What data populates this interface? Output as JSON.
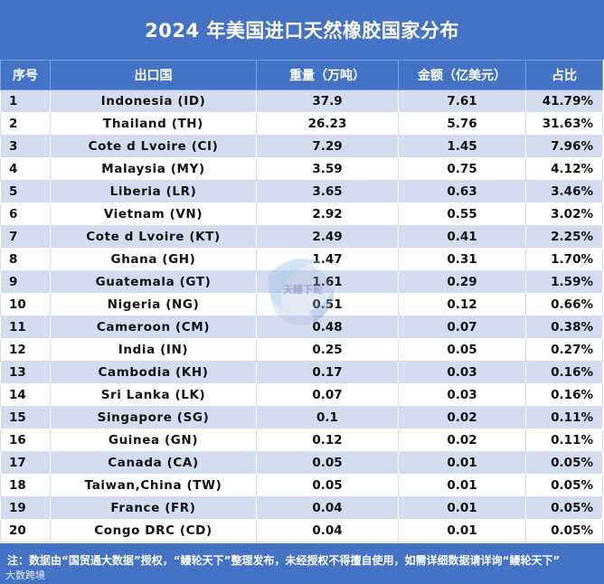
{
  "title": "2024 年美国进口天然橡胶国家分布",
  "headers": [
    "序号",
    "出口国",
    "重量（万吨）",
    "金额（亿美元）",
    "占比"
  ],
  "rows": [
    [
      "1",
      "Indonesia (ID)",
      "37.9",
      "7.61",
      "41.79%"
    ],
    [
      "2",
      "Thailand (TH)",
      "26.23",
      "5.76",
      "31.63%"
    ],
    [
      "3",
      "Cote d Lvoire (CI)",
      "7.29",
      "1.45",
      "7.96%"
    ],
    [
      "4",
      "Malaysia (MY)",
      "3.59",
      "0.75",
      "4.12%"
    ],
    [
      "5",
      "Liberia (LR)",
      "3.65",
      "0.63",
      "3.46%"
    ],
    [
      "6",
      "Vietnam (VN)",
      "2.92",
      "0.55",
      "3.02%"
    ],
    [
      "7",
      "Cote d Lvoire (KT)",
      "2.49",
      "0.41",
      "2.25%"
    ],
    [
      "8",
      "Ghana (GH)",
      "1.47",
      "0.31",
      "1.70%"
    ],
    [
      "9",
      "Guatemala (GT)",
      "1.61",
      "0.29",
      "1.59%"
    ],
    [
      "10",
      "Nigeria (NG)",
      "0.51",
      "0.12",
      "0.66%"
    ],
    [
      "11",
      "Cameroon (CM)",
      "0.48",
      "0.07",
      "0.38%"
    ],
    [
      "12",
      "India (IN)",
      "0.25",
      "0.05",
      "0.27%"
    ],
    [
      "13",
      "Cambodia (KH)",
      "0.17",
      "0.03",
      "0.16%"
    ],
    [
      "14",
      "Sri Lanka (LK)",
      "0.07",
      "0.03",
      "0.16%"
    ],
    [
      "15",
      "Singapore (SG)",
      "0.1",
      "0.02",
      "0.11%"
    ],
    [
      "16",
      "Guinea (GN)",
      "0.12",
      "0.02",
      "0.11%"
    ],
    [
      "17",
      "Canada (CA)",
      "0.05",
      "0.01",
      "0.05%"
    ],
    [
      "18",
      "Taiwan,China (TW)",
      "0.05",
      "0.01",
      "0.05%"
    ],
    [
      "19",
      "France (FR)",
      "0.04",
      "0.01",
      "0.05%"
    ],
    [
      "20",
      "Congo DRC (CD)",
      "0.04",
      "0.01",
      "0.05%"
    ]
  ],
  "footnote": "注：数据由“国贸通大数据”授权，“鳗轮天下”整理发布，未经授权不得擅自使用，如需详细数据请详询“鳗轮天下”",
  "brand": "大数跨境",
  "watermark_text": "天鳗下轮",
  "colors": {
    "header": "#4472c4",
    "row_alt": "#d6dcf0"
  },
  "icons": [
    "watermark-logo-icon"
  ]
}
